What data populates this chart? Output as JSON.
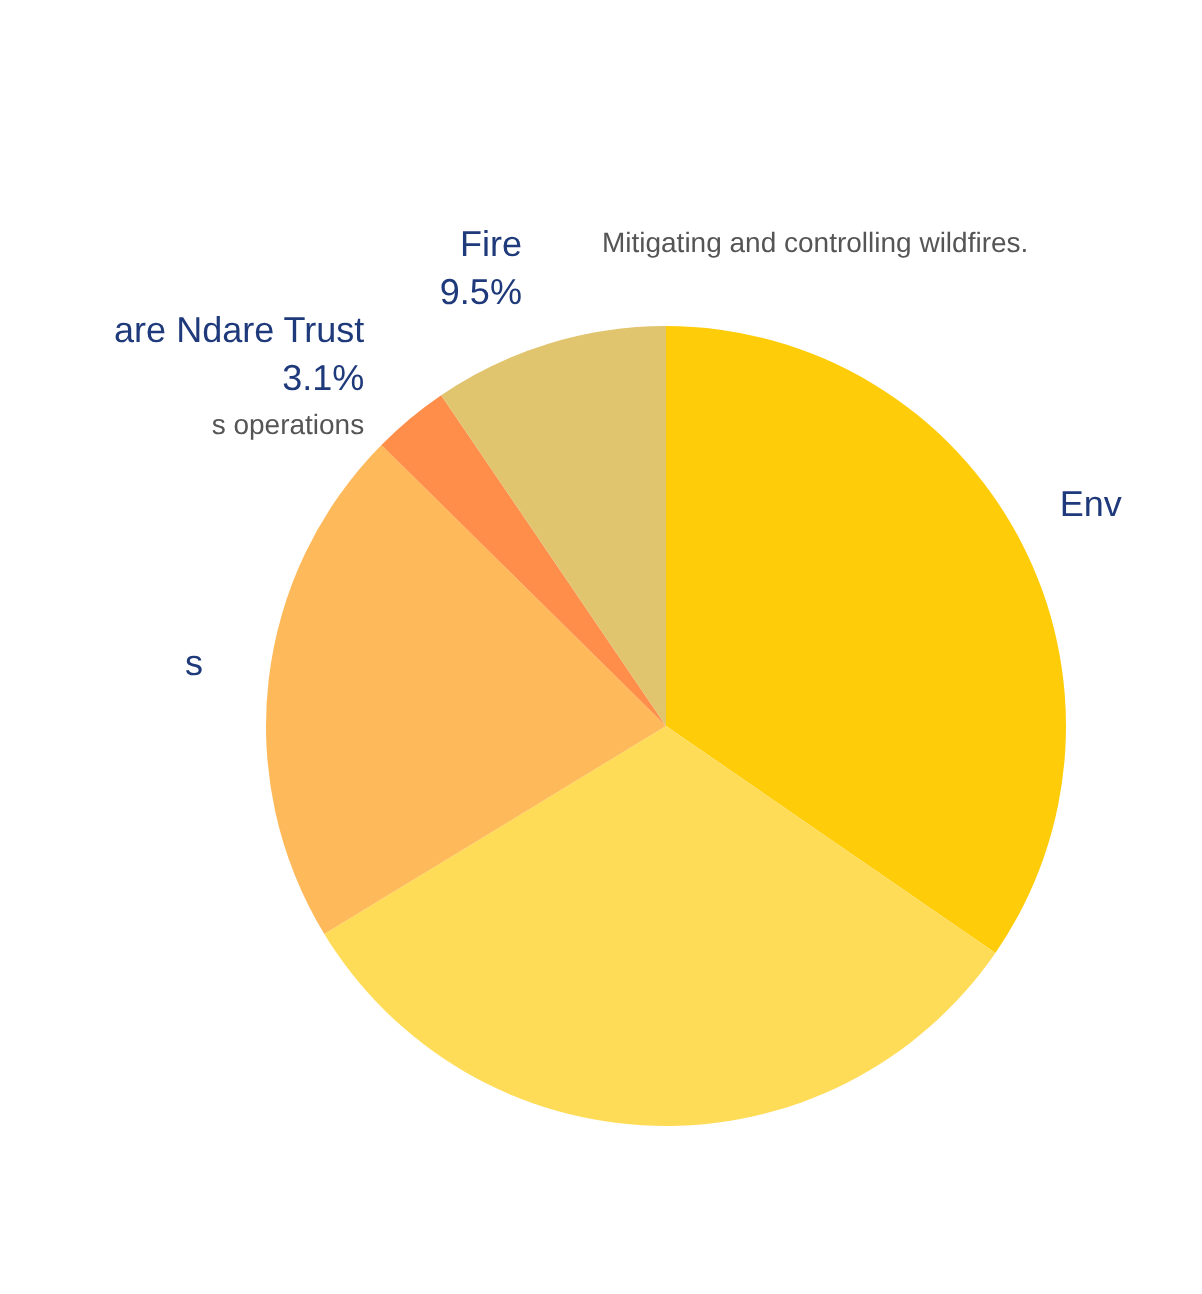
{
  "chart_data": {
    "type": "pie",
    "categories": [
      "Env",
      null,
      "s",
      "are Ndare Trust",
      "Fire"
    ],
    "values": [
      34.6,
      31.7,
      21.1,
      3.1,
      9.5
    ],
    "colors": [
      "#fecc09",
      "#ffdc57",
      "#fdb95a",
      "#fe8e4a",
      "#e1c46e"
    ],
    "value_labels": [
      null,
      null,
      null,
      "3.1%",
      "9.5%"
    ],
    "annotations": [
      "Mitigating  and controlling wildfires.",
      "s operations"
    ]
  }
}
